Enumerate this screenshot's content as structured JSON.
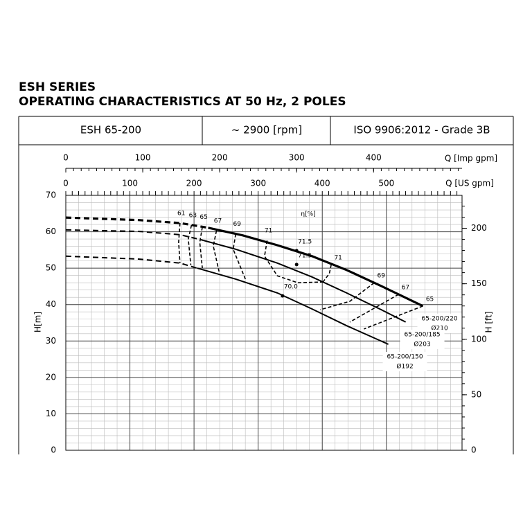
{
  "title_lines": [
    "ESH SERIES",
    "OPERATING CHARACTERISTICS AT 50 Hz, 2 POLES"
  ],
  "header": [
    "ESH 65-200",
    "~ 2900 [rpm]",
    "ISO 9906:2012 - Grade 3B"
  ],
  "chart_data": {
    "type": "line",
    "xlabel": "Q [US gpm]",
    "xlim": [
      0,
      618
    ],
    "xticks": [
      0,
      100,
      200,
      300,
      400,
      500
    ],
    "x2label": "Q [Imp gpm]",
    "x2lim": [
      0,
      515
    ],
    "x2ticks": [
      0,
      100,
      200,
      300,
      400
    ],
    "ylabel": "H[m]",
    "ylim": [
      0,
      70
    ],
    "yticks": [
      0,
      10,
      20,
      30,
      40,
      50,
      60,
      70
    ],
    "y2label": "H [ft]",
    "y2lim": [
      0,
      229.66
    ],
    "y2ticks": [
      0,
      50,
      100,
      150,
      200
    ],
    "grid": true,
    "color": "#000000",
    "series": [
      {
        "name": "65-200/220",
        "diameter": "Ø210",
        "segments": [
          {
            "line": "dashed",
            "x": [
              0,
              113.5,
              178,
              222
            ],
            "values": [
              63.9,
              63.2,
              62.4,
              61.1
            ]
          },
          {
            "line": "solid",
            "x": [
              222,
              276,
              330,
              384,
              438,
              492,
              557
            ],
            "values": [
              61.1,
              59.0,
              56.3,
              53.3,
              49.5,
              45.1,
              39.6
            ]
          }
        ]
      },
      {
        "name": "65-200/185",
        "diameter": "Ø203",
        "segments": [
          {
            "line": "dashed",
            "x": [
              0,
              113.5,
              178,
              211
            ],
            "values": [
              60.5,
              60.1,
              59.2,
              57.8
            ]
          },
          {
            "line": "solid",
            "x": [
              211,
              265,
              330,
              384,
              438,
              492,
              530
            ],
            "values": [
              57.8,
              55.2,
              51.4,
              47.6,
              43.2,
              38.6,
              35.2
            ]
          }
        ]
      },
      {
        "name": "65-200/150",
        "diameter": "Ø192",
        "segments": [
          {
            "line": "dashed",
            "x": [
              0,
              113.5,
              178,
              205
            ],
            "values": [
              53.3,
              52.5,
              51.4,
              50.0
            ]
          },
          {
            "line": "solid",
            "x": [
              205,
              265,
              330,
              384,
              438,
              503
            ],
            "values": [
              50.0,
              47.0,
              43.2,
              38.8,
              34.2,
              29.1
            ]
          }
        ]
      }
    ],
    "efficiency_label": "η[%]",
    "efficiency_curves": [
      {
        "label": "61",
        "x": [
          178,
          176,
          178
        ],
        "values": [
          62.4,
          57.1,
          51.4
        ]
      },
      {
        "label": "63",
        "x": [
          196,
          191,
          195
        ],
        "values": [
          61.8,
          58.0,
          50.8
        ]
      },
      {
        "label": "65",
        "x": [
          213,
          209,
          213
        ],
        "values": [
          61.3,
          57.1,
          50.0
        ]
      },
      {
        "label": "67",
        "x": [
          235,
          230,
          239
        ],
        "values": [
          60.3,
          56.1,
          49.1
        ]
      },
      {
        "label": "69",
        "x": [
          265,
          261,
          281
        ],
        "values": [
          59.4,
          55.2,
          46.6
        ]
      },
      {
        "label": "71",
        "x": [
          314,
          310,
          330,
          362,
          401
        ],
        "values": [
          57.6,
          53.3,
          47.9,
          46.0,
          46.2
        ]
      },
      {
        "label": "71",
        "x": [
          414,
          411,
          401
        ],
        "values": [
          51.0,
          48.5,
          46.2
        ]
      },
      {
        "label": "69",
        "x": [
          481,
          443,
          397
        ],
        "values": [
          46.0,
          40.9,
          38.6
        ]
      },
      {
        "label": "67",
        "x": [
          519,
          443
        ],
        "values": [
          42.8,
          35.2
        ]
      },
      {
        "label": "65",
        "x": [
          557,
          465
        ],
        "values": [
          39.6,
          33.3
        ]
      }
    ],
    "efficiency_points": [
      {
        "label": "71.5",
        "x": 360,
        "value": 54.8
      },
      {
        "label": "71.5",
        "x": 360,
        "value": 51.0
      },
      {
        "label": "70.0",
        "x": 338,
        "value": 42.4
      }
    ]
  }
}
